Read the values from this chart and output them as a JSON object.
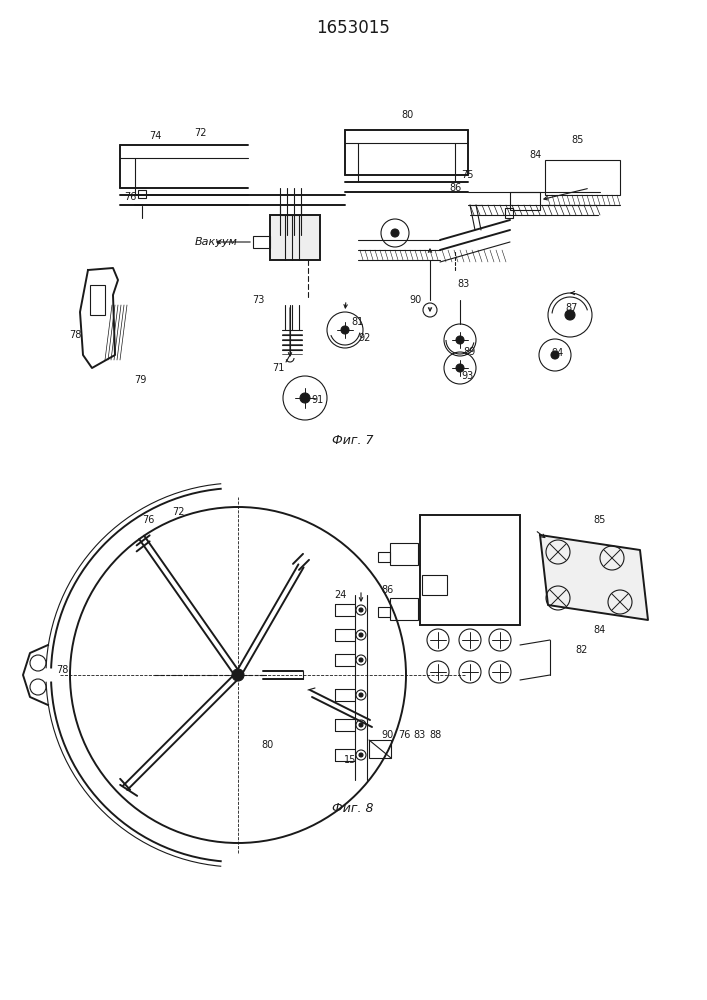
{
  "title": "1653015",
  "fig7_label": "Фиг. 7",
  "fig8_label": "Фиг. 8",
  "bg_color": "#ffffff",
  "line_color": "#1a1a1a",
  "vakuum_text": "Вакуум"
}
